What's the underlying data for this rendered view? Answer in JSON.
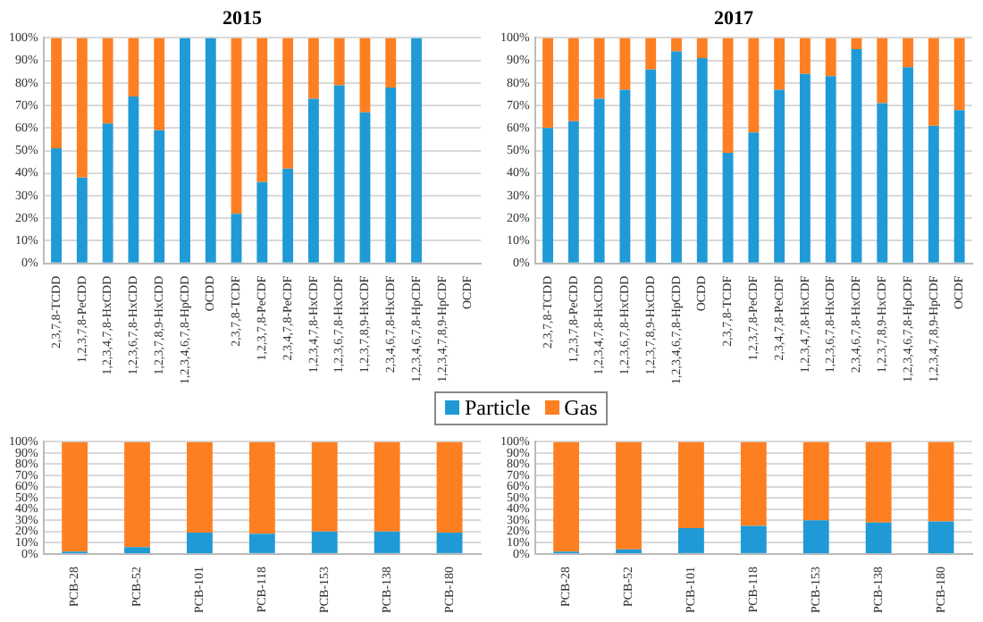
{
  "chart_data": [
    {
      "type": "bar",
      "title": "2015",
      "stacked": true,
      "grid": "y",
      "legend": "bottom",
      "ylim": [
        0,
        100
      ],
      "yticks": [
        {
          "value": 0,
          "label": "0%"
        },
        {
          "value": 10,
          "label": "10%"
        },
        {
          "value": 20,
          "label": "20%"
        },
        {
          "value": 30,
          "label": "30%"
        },
        {
          "value": 40,
          "label": "40%"
        },
        {
          "value": 50,
          "label": "50%"
        },
        {
          "value": 60,
          "label": "60%"
        },
        {
          "value": 70,
          "label": "70%"
        },
        {
          "value": 80,
          "label": "80%"
        },
        {
          "value": 90,
          "label": "90%"
        },
        {
          "value": 100,
          "label": "100%"
        }
      ],
      "categories": [
        "2,3,7,8-TCDD",
        "1,2,3,7,8-PeCDD",
        "1,2,3,4,7,8-HxCDD",
        "1,2,3,6,7,8-HxCDD",
        "1,2,3,7,8,9-HxCDD",
        "1,2,3,4,6,7,8-HpCDD",
        "OCDD",
        "2,3,7,8-TCDF",
        "1,2,3,7,8-PeCDF",
        "2,3,4,7,8-PeCDF",
        "1,2,3,4,7,8-HxCDF",
        "1,2,3,6,7,8-HxCDF",
        "1,2,3,7,8,9-HxCDF",
        "2,3,4,6,7,8-HxCDF",
        "1,2,3,4,6,7,8-HpCDF",
        "1,2,3,4,7,8,9-HpCDF",
        "OCDF"
      ],
      "series": [
        {
          "name": "Particle",
          "color": "#1f9ad6",
          "values": [
            51,
            38,
            62,
            74,
            59,
            100,
            100,
            22,
            36,
            42,
            73,
            79,
            67,
            78,
            100,
            null,
            null
          ]
        },
        {
          "name": "Gas",
          "color": "#fe7f22",
          "values": [
            49,
            62,
            38,
            26,
            41,
            0,
            0,
            78,
            64,
            58,
            27,
            21,
            33,
            22,
            0,
            null,
            null
          ]
        }
      ]
    },
    {
      "type": "bar",
      "title": "2017",
      "stacked": true,
      "grid": "y",
      "ylim": [
        0,
        100
      ],
      "yticks": [
        {
          "value": 0,
          "label": "0%"
        },
        {
          "value": 10,
          "label": "10%"
        },
        {
          "value": 20,
          "label": "20%"
        },
        {
          "value": 30,
          "label": "30%"
        },
        {
          "value": 40,
          "label": "40%"
        },
        {
          "value": 50,
          "label": "50%"
        },
        {
          "value": 60,
          "label": "60%"
        },
        {
          "value": 70,
          "label": "70%"
        },
        {
          "value": 80,
          "label": "80%"
        },
        {
          "value": 90,
          "label": "90%"
        },
        {
          "value": 100,
          "label": "100%"
        }
      ],
      "categories": [
        "2,3,7,8-TCDD",
        "1,2,3,7,8-PeCDD",
        "1,2,3,4,7,8-HxCDD",
        "1,2,3,6,7,8-HxCDD",
        "1,2,3,7,8,9-HxCDD",
        "1,2,3,4,6,7,8-HpCDD",
        "OCDD",
        "2,3,7,8-TCDF",
        "1,2,3,7,8-PeCDF",
        "2,3,4,7,8-PeCDF",
        "1,2,3,4,7,8-HxCDF",
        "1,2,3,6,7,8-HxCDF",
        "2,3,4,6,7,8-HxCDF",
        "1,2,3,7,8,9-HxCDF",
        "1,2,3,4,6,7,8-HpCDF",
        "1,2,3,4,7,8,9-HpCDF",
        "OCDF"
      ],
      "series": [
        {
          "color": "#1f9ad6",
          "values": [
            60,
            63,
            73,
            77,
            86,
            94,
            91,
            49,
            58,
            77,
            84,
            83,
            95,
            71,
            87,
            61,
            68
          ]
        },
        {
          "color": "#fe7f22",
          "values": [
            40,
            37,
            27,
            23,
            14,
            6,
            9,
            51,
            42,
            23,
            16,
            17,
            5,
            29,
            13,
            39,
            32
          ]
        }
      ]
    },
    {
      "type": "bar",
      "stacked": true,
      "grid": "y",
      "ylim": [
        0,
        100
      ],
      "yticks": [
        {
          "value": 0,
          "label": "0%"
        },
        {
          "value": 10,
          "label": "10%"
        },
        {
          "value": 20,
          "label": "20%"
        },
        {
          "value": 30,
          "label": "30%"
        },
        {
          "value": 40,
          "label": "40%"
        },
        {
          "value": 50,
          "label": "50%"
        },
        {
          "value": 60,
          "label": "60%"
        },
        {
          "value": 70,
          "label": "70%"
        },
        {
          "value": 80,
          "label": "80%"
        },
        {
          "value": 90,
          "label": "90%"
        },
        {
          "value": 100,
          "label": "100%"
        }
      ],
      "categories": [
        "PCB-28",
        "PCB-52",
        "PCB-101",
        "PCB-118",
        "PCB-153",
        "PCB-138",
        "PCB-180"
      ],
      "series": [
        {
          "color": "#1f9ad6",
          "values": [
            2,
            6,
            19,
            18,
            20,
            20,
            19
          ]
        },
        {
          "color": "#fe7f22",
          "values": [
            98,
            94,
            81,
            82,
            80,
            80,
            81
          ]
        }
      ]
    },
    {
      "type": "bar",
      "stacked": true,
      "grid": "y",
      "ylim": [
        0,
        100
      ],
      "yticks": [
        {
          "value": 0,
          "label": "0%"
        },
        {
          "value": 10,
          "label": "10%"
        },
        {
          "value": 20,
          "label": "20%"
        },
        {
          "value": 30,
          "label": "30%"
        },
        {
          "value": 40,
          "label": "40%"
        },
        {
          "value": 50,
          "label": "50%"
        },
        {
          "value": 60,
          "label": "60%"
        },
        {
          "value": 70,
          "label": "70%"
        },
        {
          "value": 80,
          "label": "80%"
        },
        {
          "value": 90,
          "label": "90%"
        },
        {
          "value": 100,
          "label": "100%"
        }
      ],
      "categories": [
        "PCB-28",
        "PCB-52",
        "PCB-101",
        "PCB-118",
        "PCB-153",
        "PCB-138",
        "PCB-180"
      ],
      "series": [
        {
          "color": "#1f9ad6",
          "values": [
            2,
            4,
            23,
            25,
            30,
            28,
            29
          ]
        },
        {
          "color": "#fe7f22",
          "values": [
            98,
            96,
            77,
            75,
            70,
            72,
            71
          ]
        }
      ]
    }
  ]
}
